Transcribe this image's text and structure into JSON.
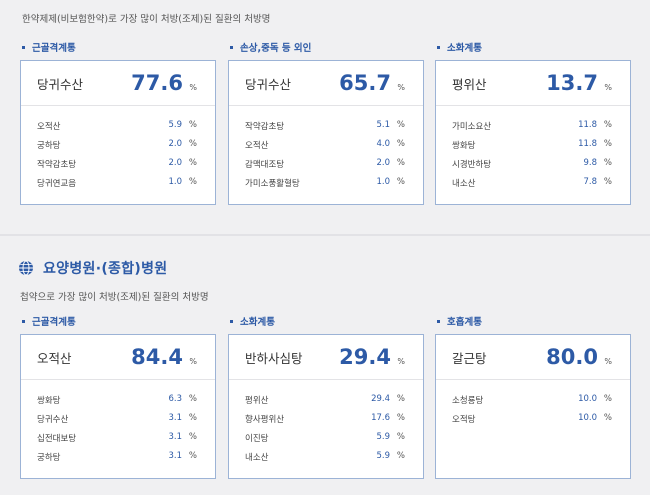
{
  "top": {
    "caption": "한약제제(비보험한약)로 가장 많이 처방(조제)된 질환의 처방명",
    "columns": [
      {
        "category": "근골격계통",
        "top_name": "당귀수산",
        "top_value": "77.6",
        "unit": "%",
        "rows": [
          {
            "name": "오적산",
            "value": "5.9"
          },
          {
            "name": "궁하탕",
            "value": "2.0"
          },
          {
            "name": "작약감초탕",
            "value": "2.0"
          },
          {
            "name": "당귀연교음",
            "value": "1.0"
          }
        ]
      },
      {
        "category": "손상,중독 등 외인",
        "top_name": "당귀수산",
        "top_value": "65.7",
        "unit": "%",
        "rows": [
          {
            "name": "작약감초탕",
            "value": "5.1"
          },
          {
            "name": "오적산",
            "value": "4.0"
          },
          {
            "name": "감맥대조탕",
            "value": "2.0"
          },
          {
            "name": "가미소풍활혈탕",
            "value": "1.0"
          }
        ]
      },
      {
        "category": "소화계통",
        "top_name": "평위산",
        "top_value": "13.7",
        "unit": "%",
        "rows": [
          {
            "name": "가미소요산",
            "value": "11.8"
          },
          {
            "name": "쌍화탕",
            "value": "11.8"
          },
          {
            "name": "시경반하탕",
            "value": "9.8"
          },
          {
            "name": "내소산",
            "value": "7.8"
          }
        ]
      }
    ]
  },
  "bottom": {
    "title": "요양병원·(종합)병원",
    "caption": "첩약으로 가장 많이 처방(조제)된 질환의 처방명",
    "columns": [
      {
        "category": "근골격계통",
        "top_name": "오적산",
        "top_value": "84.4",
        "unit": "%",
        "rows": [
          {
            "name": "쌍화탕",
            "value": "6.3"
          },
          {
            "name": "당귀수산",
            "value": "3.1"
          },
          {
            "name": "십전대보탕",
            "value": "3.1"
          },
          {
            "name": "궁하탕",
            "value": "3.1"
          }
        ]
      },
      {
        "category": "소화계통",
        "top_name": "반하사심탕",
        "top_value": "29.4",
        "unit": "%",
        "rows": [
          {
            "name": "평위산",
            "value": "29.4"
          },
          {
            "name": "향사평위산",
            "value": "17.6"
          },
          {
            "name": "이진탕",
            "value": "5.9"
          },
          {
            "name": "내소산",
            "value": "5.9"
          }
        ]
      },
      {
        "category": "호흡계통",
        "top_name": "갈근탕",
        "top_value": "80.0",
        "unit": "%",
        "rows": [
          {
            "name": "소청룡탕",
            "value": "10.0"
          },
          {
            "name": "오적탕",
            "value": "10.0"
          }
        ]
      }
    ]
  },
  "icons": {
    "section_icon": "globe-icon",
    "bullet_icon": "square-bullet-icon"
  },
  "colors": {
    "accent": "#2d5aa6",
    "card_border": "#9cb3d6",
    "background": "#f0f0f2"
  }
}
